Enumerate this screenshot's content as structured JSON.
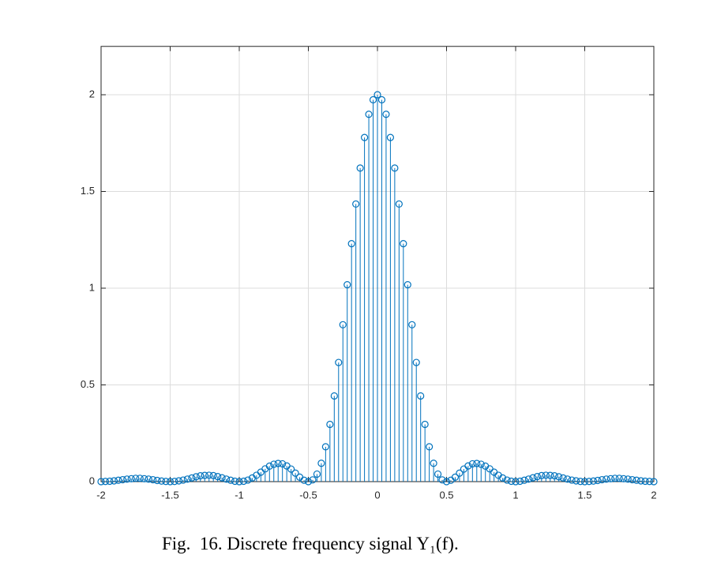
{
  "chart_data": {
    "type": "stem",
    "caption": "Fig.  16. Discrete frequency signal Y₁(f).",
    "color": "#0072bd",
    "xlim": [
      -2,
      2
    ],
    "ylim": [
      0,
      2.25
    ],
    "xticks": [
      -2,
      -1.5,
      -1,
      -0.5,
      0,
      0.5,
      1,
      1.5,
      2
    ],
    "yticks": [
      0,
      0.5,
      1,
      1.5,
      2
    ],
    "grid": true,
    "x": [
      -2,
      -1.96875,
      -1.9375,
      -1.90625,
      -1.875,
      -1.84375,
      -1.8125,
      -1.78125,
      -1.75,
      -1.71875,
      -1.6875,
      -1.65625,
      -1.625,
      -1.59375,
      -1.5625,
      -1.53125,
      -1.5,
      -1.46875,
      -1.4375,
      -1.40625,
      -1.375,
      -1.34375,
      -1.3125,
      -1.28125,
      -1.25,
      -1.21875,
      -1.1875,
      -1.15625,
      -1.125,
      -1.09375,
      -1.0625,
      -1.03125,
      -1,
      -0.96875,
      -0.9375,
      -0.90625,
      -0.875,
      -0.84375,
      -0.8125,
      -0.78125,
      -0.75,
      -0.71875,
      -0.6875,
      -0.65625,
      -0.625,
      -0.59375,
      -0.5625,
      -0.53125,
      -0.5,
      -0.46875,
      -0.4375,
      -0.40625,
      -0.375,
      -0.34375,
      -0.3125,
      -0.28125,
      -0.25,
      -0.21875,
      -0.1875,
      -0.15625,
      -0.125,
      -0.09375,
      -0.0625,
      -0.03125,
      0,
      0.03125,
      0.0625,
      0.09375,
      0.125,
      0.15625,
      0.1875,
      0.21875,
      0.25,
      0.28125,
      0.3125,
      0.34375,
      0.375,
      0.40625,
      0.4375,
      0.46875,
      0.5,
      0.53125,
      0.5625,
      0.59375,
      0.625,
      0.65625,
      0.6875,
      0.71875,
      0.75,
      0.78125,
      0.8125,
      0.84375,
      0.875,
      0.90625,
      0.9375,
      0.96875,
      1,
      1.03125,
      1.0625,
      1.09375,
      1.125,
      1.15625,
      1.1875,
      1.21875,
      1.25,
      1.28125,
      1.3125,
      1.34375,
      1.375,
      1.40625,
      1.4375,
      1.46875,
      1.5,
      1.53125,
      1.5625,
      1.59375,
      1.625,
      1.65625,
      1.6875,
      1.71875,
      1.75,
      1.78125,
      1.8125,
      1.84375,
      1.875,
      1.90625,
      1.9375,
      1.96875,
      2
    ],
    "values": [
      0,
      0.001,
      0.002,
      0.004,
      0.007,
      0.01,
      0.013,
      0.015,
      0.017,
      0.017,
      0.015,
      0.013,
      0.01,
      0.006,
      0.003,
      0.001,
      0,
      0.001,
      0.004,
      0.008,
      0.013,
      0.019,
      0.025,
      0.03,
      0.032,
      0.033,
      0.031,
      0.026,
      0.02,
      0.013,
      0.007,
      0.002,
      0,
      0.002,
      0.008,
      0.019,
      0.033,
      0.049,
      0.066,
      0.08,
      0.09,
      0.094,
      0.092,
      0.081,
      0.065,
      0.044,
      0.023,
      0.007,
      0,
      0.009,
      0.039,
      0.095,
      0.18,
      0.296,
      0.443,
      0.616,
      0.811,
      1.018,
      1.23,
      1.435,
      1.621,
      1.779,
      1.899,
      1.974,
      2,
      1.974,
      1.899,
      1.779,
      1.621,
      1.435,
      1.23,
      1.018,
      0.811,
      0.616,
      0.443,
      0.296,
      0.18,
      0.095,
      0.039,
      0.009,
      0,
      0.007,
      0.023,
      0.044,
      0.065,
      0.081,
      0.092,
      0.094,
      0.09,
      0.08,
      0.066,
      0.049,
      0.033,
      0.019,
      0.008,
      0.002,
      0,
      0.002,
      0.007,
      0.013,
      0.02,
      0.026,
      0.031,
      0.033,
      0.032,
      0.03,
      0.025,
      0.019,
      0.013,
      0.008,
      0.004,
      0.001,
      0,
      0.001,
      0.003,
      0.006,
      0.01,
      0.013,
      0.015,
      0.017,
      0.017,
      0.015,
      0.013,
      0.01,
      0.007,
      0.004,
      0.002,
      0.001,
      0
    ]
  }
}
